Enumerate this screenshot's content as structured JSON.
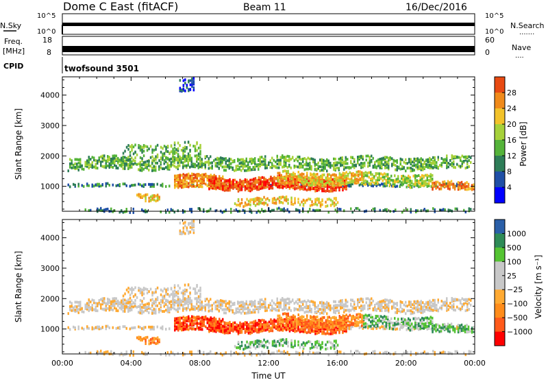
{
  "header": {
    "title": "Dome C East (fitACF)",
    "beam": "Beam 11",
    "date": "16/Dec/2016"
  },
  "params": {
    "nsky_label": "N.Sky",
    "nsearch_label": "N.Search",
    "nsearch_dots": ".......",
    "nsky_ticks": [
      "10^5",
      "10^0"
    ],
    "nsearch_ticks": [
      "10^5",
      "10^0"
    ],
    "freq_label_line1": "Freq.",
    "freq_label_line2": "[MHz]",
    "freq_ticks": [
      "18",
      "8"
    ],
    "nave_label": "Nave",
    "nave_dots": "....",
    "nave_ticks": [
      "60",
      "0"
    ],
    "cpid_label": "CPID",
    "cpid_value": "twofsound 3501"
  },
  "colors": {
    "power_scale": [
      "#0000ff",
      "#1f4fa6",
      "#2e7d58",
      "#55b33a",
      "#a6d13a",
      "#f2c22a",
      "#f08a1a",
      "#e84a12",
      "#ff0000"
    ],
    "velocity_scale": [
      "#ff0000",
      "#ff5a1a",
      "#ff8c1a",
      "#ffaa33",
      "#c8c8c8",
      "#c8c8c8",
      "#55c433",
      "#2e8b57",
      "#2a5fa8",
      "#1a3fd0"
    ]
  },
  "chart_data": [
    {
      "type": "heatmap",
      "name": "power",
      "ylabel": "Slant Range [km]",
      "xlabel": "",
      "x_ticks": [],
      "y_ticks": [
        "1000",
        "2000",
        "3000",
        "4000"
      ],
      "ylim": [
        180,
        4600
      ],
      "xlim_hours": [
        0,
        24
      ],
      "colorbar": {
        "label": "Power [dB]",
        "ticks": [
          "4",
          "8",
          "12",
          "16",
          "20",
          "24",
          "28"
        ],
        "range": [
          0,
          32
        ]
      }
    },
    {
      "type": "heatmap",
      "name": "velocity",
      "ylabel": "Slant Range [km]",
      "xlabel": "Time UT",
      "x_ticks": [
        "00:00",
        "04:00",
        "08:00",
        "12:00",
        "16:00",
        "20:00",
        "00:00"
      ],
      "y_ticks": [
        "1000",
        "2000",
        "3000",
        "4000"
      ],
      "ylim": [
        180,
        4600
      ],
      "xlim_hours": [
        0,
        24
      ],
      "colorbar": {
        "label": "Velocity [m s⁻¹]",
        "ticks": [
          "1000",
          "500",
          "100",
          "25",
          "−25",
          "−100",
          "−500",
          "−1000"
        ]
      }
    }
  ]
}
